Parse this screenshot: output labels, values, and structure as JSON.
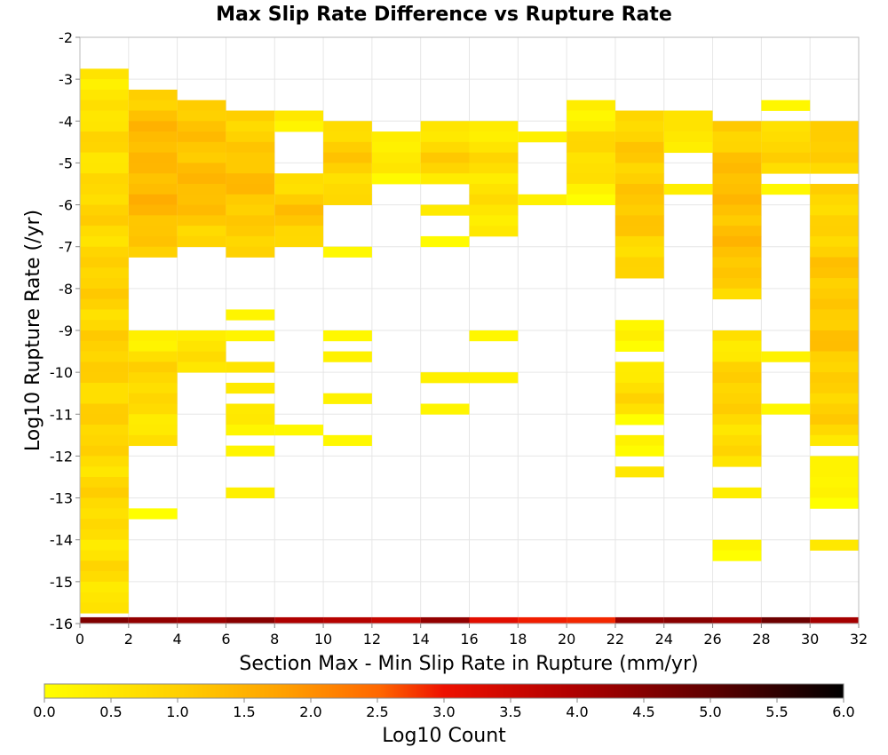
{
  "chart_data": {
    "type": "heatmap",
    "title": "Max Slip Rate Difference vs Rupture Rate",
    "xlabel": "Section Max - Min Slip Rate in Rupture (mm/yr)",
    "ylabel": "Log10 Rupture Rate (/yr)",
    "xlim": [
      0,
      32
    ],
    "ylim": [
      -16,
      -2
    ],
    "x_ticks": [
      "0",
      "2",
      "4",
      "6",
      "8",
      "10",
      "12",
      "14",
      "16",
      "18",
      "20",
      "22",
      "24",
      "26",
      "28",
      "30",
      "32"
    ],
    "y_ticks": [
      "-2",
      "-3",
      "-4",
      "-5",
      "-6",
      "-7",
      "-8",
      "-9",
      "-10",
      "-11",
      "-12",
      "-13",
      "-14",
      "-15",
      "-16"
    ],
    "x_bin_width": 2,
    "y_bin_height": 0.25,
    "grid": true,
    "colorbar": {
      "label": "Log10 Count",
      "range": [
        0,
        6
      ],
      "ticks": [
        "0.0",
        "0.5",
        "1.0",
        "1.5",
        "2.0",
        "2.5",
        "3.0",
        "3.5",
        "4.0",
        "4.5",
        "5.0",
        "5.5",
        "6.0"
      ],
      "colors": [
        "#ffff00",
        "#ffd000",
        "#ffa000",
        "#ff6600",
        "#ee1000",
        "#b00000",
        "#600000",
        "#000000"
      ]
    },
    "columns": [
      {
        "x": 1,
        "segments": [
          {
            "y_top": -2.75,
            "y_bottom": -15.75,
            "level": 0.6
          }
        ]
      },
      {
        "x": 3,
        "segments": [
          {
            "y_top": -3.25,
            "y_bottom": -7.25,
            "level": 1.1
          },
          {
            "y_top": -9.0,
            "y_bottom": -11.75,
            "level": 0.5
          },
          {
            "y_top": -13.25,
            "y_bottom": -13.5,
            "level": 0.2
          }
        ]
      },
      {
        "x": 5,
        "segments": [
          {
            "y_top": -3.5,
            "y_bottom": -7.0,
            "level": 1.0
          },
          {
            "y_top": -9.0,
            "y_bottom": -10.0,
            "level": 0.4
          }
        ]
      },
      {
        "x": 7,
        "segments": [
          {
            "y_top": -3.75,
            "y_bottom": -7.25,
            "level": 0.9
          },
          {
            "y_top": -8.5,
            "y_bottom": -8.75,
            "level": 0.2
          },
          {
            "y_top": -9.0,
            "y_bottom": -9.25,
            "level": 0.2
          },
          {
            "y_top": -9.75,
            "y_bottom": -10.0,
            "level": 0.5
          },
          {
            "y_top": -10.25,
            "y_bottom": -10.5,
            "level": 0.4
          },
          {
            "y_top": -10.75,
            "y_bottom": -11.5,
            "level": 0.4
          },
          {
            "y_top": -11.75,
            "y_bottom": -12.0,
            "level": 0.2
          },
          {
            "y_top": -12.75,
            "y_bottom": -13.0,
            "level": 0.3
          }
        ]
      },
      {
        "x": 9,
        "segments": [
          {
            "y_top": -3.75,
            "y_bottom": -4.25,
            "level": 0.6
          },
          {
            "y_top": -5.25,
            "y_bottom": -7.0,
            "level": 0.8
          },
          {
            "y_top": -11.25,
            "y_bottom": -11.5,
            "level": 0.3
          }
        ]
      },
      {
        "x": 11,
        "segments": [
          {
            "y_top": -4.0,
            "y_bottom": -6.0,
            "level": 0.7
          },
          {
            "y_top": -7.0,
            "y_bottom": -7.25,
            "level": 0.2
          },
          {
            "y_top": -9.0,
            "y_bottom": -9.25,
            "level": 0.2
          },
          {
            "y_top": -9.5,
            "y_bottom": -9.75,
            "level": 0.3
          },
          {
            "y_top": -10.5,
            "y_bottom": -10.75,
            "level": 0.3
          },
          {
            "y_top": -11.5,
            "y_bottom": -11.75,
            "level": 0.2
          }
        ]
      },
      {
        "x": 13,
        "segments": [
          {
            "y_top": -4.25,
            "y_bottom": -5.5,
            "level": 0.3
          }
        ]
      },
      {
        "x": 15,
        "segments": [
          {
            "y_top": -4.0,
            "y_bottom": -5.5,
            "level": 0.6
          },
          {
            "y_top": -6.0,
            "y_bottom": -6.25,
            "level": 0.5
          },
          {
            "y_top": -6.75,
            "y_bottom": -7.0,
            "level": 0.2
          },
          {
            "y_top": -10.0,
            "y_bottom": -10.25,
            "level": 0.4
          },
          {
            "y_top": -10.75,
            "y_bottom": -11.0,
            "level": 0.3
          }
        ]
      },
      {
        "x": 17,
        "segments": [
          {
            "y_top": -4.0,
            "y_bottom": -6.75,
            "level": 0.4
          },
          {
            "y_top": -9.0,
            "y_bottom": -9.25,
            "level": 0.2
          },
          {
            "y_top": -10.0,
            "y_bottom": -10.25,
            "level": 0.3
          }
        ]
      },
      {
        "x": 19,
        "segments": [
          {
            "y_top": -4.25,
            "y_bottom": -4.5,
            "level": 0.2
          },
          {
            "y_top": -5.75,
            "y_bottom": -6.0,
            "level": 0.2
          }
        ]
      },
      {
        "x": 21,
        "segments": [
          {
            "y_top": -3.5,
            "y_bottom": -6.0,
            "level": 0.4
          }
        ]
      },
      {
        "x": 23,
        "segments": [
          {
            "y_top": -3.75,
            "y_bottom": -7.75,
            "level": 0.8
          },
          {
            "y_top": -8.75,
            "y_bottom": -9.5,
            "level": 0.2
          },
          {
            "y_top": -9.75,
            "y_bottom": -11.25,
            "level": 0.4
          },
          {
            "y_top": -11.5,
            "y_bottom": -12.0,
            "level": 0.3
          },
          {
            "y_top": -12.25,
            "y_bottom": -12.5,
            "level": 0.5
          }
        ]
      },
      {
        "x": 25,
        "segments": [
          {
            "y_top": -3.75,
            "y_bottom": -4.75,
            "level": 0.4
          },
          {
            "y_top": -5.5,
            "y_bottom": -5.75,
            "level": 0.2
          }
        ]
      },
      {
        "x": 27,
        "segments": [
          {
            "y_top": -4.0,
            "y_bottom": -8.25,
            "level": 1.0
          },
          {
            "y_top": -9.0,
            "y_bottom": -12.25,
            "level": 0.6
          },
          {
            "y_top": -12.75,
            "y_bottom": -13.0,
            "level": 0.3
          },
          {
            "y_top": -14.0,
            "y_bottom": -14.5,
            "level": 0.2
          }
        ]
      },
      {
        "x": 29,
        "segments": [
          {
            "y_top": -3.5,
            "y_bottom": -3.75,
            "level": 0.2
          },
          {
            "y_top": -4.0,
            "y_bottom": -5.25,
            "level": 0.6
          },
          {
            "y_top": -5.5,
            "y_bottom": -5.75,
            "level": 0.2
          },
          {
            "y_top": -9.5,
            "y_bottom": -9.75,
            "level": 0.3
          },
          {
            "y_top": -10.75,
            "y_bottom": -11.0,
            "level": 0.2
          }
        ]
      },
      {
        "x": 31,
        "segments": [
          {
            "y_top": -4.0,
            "y_bottom": -5.25,
            "level": 0.8
          },
          {
            "y_top": -5.5,
            "y_bottom": -11.75,
            "level": 0.8
          },
          {
            "y_top": -12.0,
            "y_bottom": -13.25,
            "level": 0.1
          },
          {
            "y_top": -14.0,
            "y_bottom": -14.25,
            "level": 0.3
          }
        ]
      }
    ],
    "bottom_row": {
      "y_top": -15.85,
      "y_bottom": -16.0,
      "levels": [
        4.8,
        4.6,
        4.5,
        4.7,
        4.3,
        4.2,
        4.0,
        4.6,
        3.6,
        3.3,
        3.2,
        4.6,
        4.7,
        4.5,
        5.0,
        4.4
      ]
    }
  }
}
